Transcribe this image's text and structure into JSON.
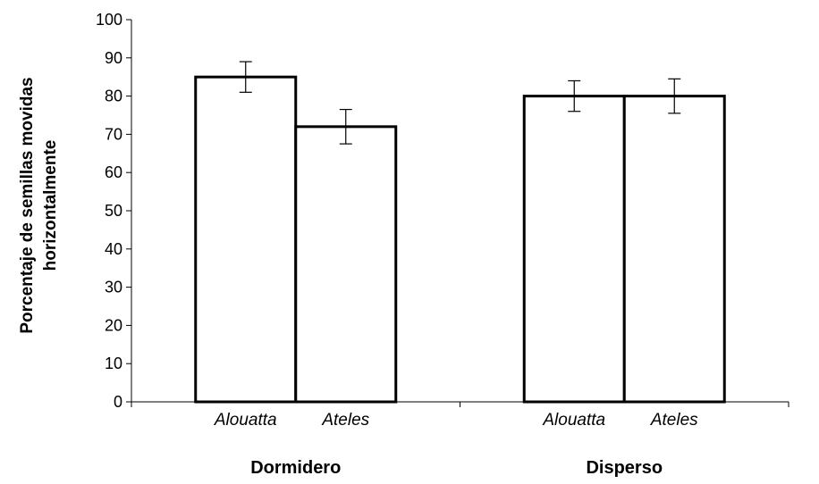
{
  "chart_data": {
    "type": "bar",
    "ylabel_lines": [
      "Porcentaje de semillas movidas",
      "horizontalmente"
    ],
    "ylim": [
      0,
      100
    ],
    "y_ticks": [
      "0",
      "10",
      "20",
      "30",
      "40",
      "50",
      "60",
      "70",
      "80",
      "90",
      "100"
    ],
    "groups": [
      {
        "label": "Dormidero",
        "bars": [
          {
            "label": "Alouatta",
            "value": 85,
            "error": 4
          },
          {
            "label": "Ateles",
            "value": 72,
            "error": 4.5
          }
        ]
      },
      {
        "label": "Disperso",
        "bars": [
          {
            "label": "Alouatta",
            "value": 80,
            "error": 4
          },
          {
            "label": "Ateles",
            "value": 80,
            "error": 4.5
          }
        ]
      }
    ],
    "bar_fill": "#ffffff",
    "bar_stroke": "#000000",
    "grid": false
  }
}
